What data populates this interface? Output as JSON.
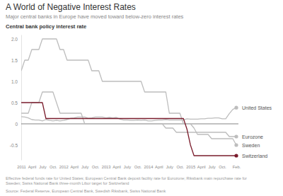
{
  "chart_data": {
    "type": "line",
    "title": "A World of Negative Interest Rates",
    "subtitle": "Major central banks in Europe have moved toward below-zero interest rates",
    "ylabel": "Central bank policy interest rate",
    "note": [
      "Effective federal funds rate for United States; European Central Bank deposit facility rate for Eurozone; Riksbank main repurchase rate for",
      "Sweden; Swiss National Bank three-month Libor target for Switzerland"
    ],
    "source": "Source: Federal Reserve, European Central Bank, Swedish Riksbank, Swiss National Bank",
    "categories": [
      "2011",
      null,
      null,
      "April",
      null,
      null,
      "July",
      null,
      null,
      "Oct.",
      null,
      null,
      "2012",
      null,
      null,
      "April",
      null,
      null,
      "July",
      null,
      null,
      "Oct.",
      null,
      null,
      "2013",
      null,
      null,
      "April",
      null,
      null,
      "July",
      null,
      null,
      "Oct.",
      null,
      null,
      "2014",
      null,
      null,
      "April",
      null,
      null,
      "July",
      null,
      null,
      "Oct.",
      null,
      null,
      "2015",
      null,
      null,
      "April",
      null,
      null,
      "July",
      null,
      null,
      "Oct.",
      null,
      null,
      null,
      "Feb."
    ],
    "series": [
      {
        "name": "United States",
        "color": "#bdbdbd",
        "values": [
          0.17,
          0.16,
          0.14,
          0.1,
          0.09,
          0.09,
          0.07,
          0.1,
          0.08,
          0.07,
          0.08,
          0.07,
          0.08,
          0.1,
          0.13,
          0.14,
          0.16,
          0.16,
          0.16,
          0.13,
          0.14,
          0.16,
          0.16,
          0.16,
          0.14,
          0.15,
          0.14,
          0.15,
          0.11,
          0.09,
          0.09,
          0.08,
          0.08,
          0.09,
          0.08,
          0.09,
          0.07,
          0.07,
          0.08,
          0.09,
          0.09,
          0.1,
          0.09,
          0.09,
          0.09,
          0.09,
          0.09,
          0.12,
          0.11,
          0.11,
          0.11,
          0.12,
          0.12,
          0.13,
          0.13,
          0.14,
          0.14,
          0.12,
          0.12,
          0.24,
          0.34,
          0.38
        ]
      },
      {
        "name": "Eurozone",
        "color": "#bdbdbd",
        "values": [
          0.25,
          0.25,
          0.25,
          0.5,
          0.5,
          0.5,
          0.75,
          0.75,
          0.75,
          0.75,
          0.5,
          0.25,
          0.25,
          0.25,
          0.25,
          0.25,
          0.25,
          0.25,
          0,
          0,
          0,
          0,
          0,
          0,
          0,
          0,
          0,
          0,
          0,
          0,
          0,
          0,
          0,
          0,
          0,
          0,
          0,
          0,
          0,
          0,
          0,
          -0.1,
          -0.1,
          -0.1,
          -0.2,
          -0.2,
          -0.2,
          -0.2,
          -0.2,
          -0.2,
          -0.2,
          -0.2,
          -0.2,
          -0.2,
          -0.2,
          -0.2,
          -0.2,
          -0.2,
          -0.2,
          -0.3,
          -0.3,
          -0.3
        ]
      },
      {
        "name": "Sweden",
        "color": "#bdbdbd",
        "values": [
          1.25,
          1.5,
          1.5,
          1.75,
          1.75,
          1.75,
          2.0,
          2.0,
          2.0,
          2.0,
          2.0,
          1.75,
          1.75,
          1.5,
          1.5,
          1.5,
          1.5,
          1.5,
          1.5,
          1.5,
          1.25,
          1.25,
          1.25,
          1.0,
          1.0,
          1.0,
          1.0,
          1.0,
          1.0,
          1.0,
          1.0,
          1.0,
          1.0,
          1.0,
          1.0,
          0.75,
          0.75,
          0.75,
          0.75,
          0.75,
          0.75,
          0.75,
          0.25,
          0.25,
          0.25,
          0.25,
          0,
          0,
          0,
          -0.1,
          -0.25,
          -0.25,
          -0.25,
          -0.25,
          -0.35,
          -0.35,
          -0.35,
          -0.35,
          -0.35,
          -0.35,
          -0.35,
          -0.5
        ]
      },
      {
        "name": "Switzerland",
        "color": "#7a1c2c",
        "values": [
          0.5,
          0.5,
          0.5,
          0.5,
          0.5,
          0.5,
          0.5,
          0.125,
          0.125,
          0.125,
          0.125,
          0.125,
          0.125,
          0.125,
          0.125,
          0.125,
          0.125,
          0.125,
          0.125,
          0.125,
          0.125,
          0.125,
          0.125,
          0.125,
          0.125,
          0.125,
          0.125,
          0.125,
          0.125,
          0.125,
          0.125,
          0.125,
          0.125,
          0.125,
          0.125,
          0.125,
          0.125,
          0.125,
          0.125,
          0.125,
          0.125,
          0.125,
          0.125,
          0.125,
          0.125,
          0.125,
          0.125,
          -0.125,
          -0.5,
          -0.75,
          -0.75,
          -0.75,
          -0.75,
          -0.75,
          -0.75,
          -0.75,
          -0.75,
          -0.75,
          -0.75,
          -0.75,
          -0.75,
          -0.75
        ]
      }
    ],
    "ylim": [
      -0.85,
      2.1
    ],
    "yticks": [
      {
        "value": 2,
        "label": "2.0"
      },
      {
        "value": 1.5,
        "label": "1.5"
      },
      {
        "value": 1,
        "label": "1.0"
      },
      {
        "value": 0.5,
        "label": "0.5"
      },
      0,
      -0.5
    ],
    "grid": false
  }
}
